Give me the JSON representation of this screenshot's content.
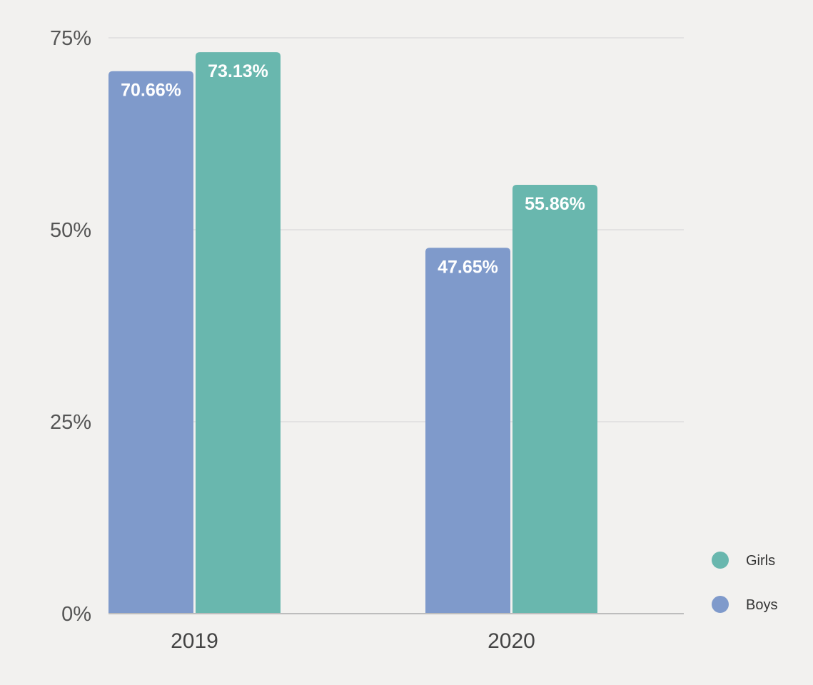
{
  "chart_data": {
    "type": "bar",
    "categories": [
      "2019",
      "2020"
    ],
    "series": [
      {
        "name": "Boys",
        "values": [
          70.66,
          47.65
        ],
        "labels": [
          "70.66%",
          "47.65%"
        ],
        "color": "#7f9acb"
      },
      {
        "name": "Girls",
        "values": [
          73.13,
          55.86
        ],
        "labels": [
          "73.13%",
          "55.86%"
        ],
        "color": "#69b7ae"
      }
    ],
    "yticks": [
      0,
      25,
      50,
      75
    ],
    "ytick_labels": [
      "0%",
      "25%",
      "50%",
      "75%"
    ],
    "ylim": [
      0,
      75
    ],
    "grid": true,
    "legend": {
      "placement": "bottom-right",
      "order": [
        "Girls",
        "Boys"
      ]
    },
    "colors": {
      "background": "#f2f1ef",
      "grid": "#dedede",
      "axis": "#bdbdbd"
    }
  }
}
